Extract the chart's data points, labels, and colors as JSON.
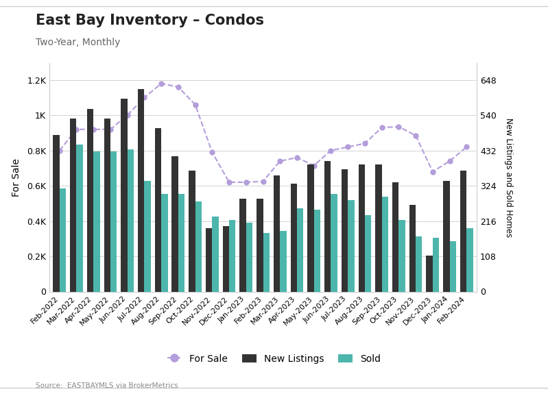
{
  "title": "East Bay Inventory – Condos",
  "subtitle": "Two-Year, Monthly",
  "source": "Source:  EASTBAYMLS via BrokerMetrics",
  "labels": [
    "Feb-2022",
    "Mar-2022",
    "Apr-2022",
    "May-2022",
    "Jun-2022",
    "Jul-2022",
    "Aug-2022",
    "Sep-2022",
    "Oct-2022",
    "Nov-2022",
    "Dec-2022",
    "Jan-2023",
    "Feb-2023",
    "Mar-2023",
    "Apr-2023",
    "May-2023",
    "Jun-2023",
    "Jul-2023",
    "Aug-2023",
    "Sep-2023",
    "Oct-2023",
    "Nov-2023",
    "Dec-2023",
    "Jan-2024",
    "Feb-2024"
  ],
  "for_sale": [
    800,
    920,
    920,
    920,
    1000,
    1100,
    1180,
    1160,
    1060,
    790,
    620,
    620,
    625,
    740,
    760,
    715,
    800,
    820,
    840,
    930,
    935,
    885,
    680,
    740,
    820
  ],
  "new_listings": [
    480,
    530,
    560,
    530,
    590,
    620,
    500,
    415,
    370,
    195,
    200,
    285,
    285,
    355,
    330,
    390,
    400,
    375,
    390,
    390,
    335,
    265,
    110,
    340,
    370
  ],
  "sold": [
    315,
    450,
    430,
    430,
    435,
    340,
    300,
    300,
    275,
    230,
    220,
    210,
    180,
    185,
    255,
    250,
    300,
    280,
    235,
    290,
    220,
    170,
    165,
    155,
    195
  ],
  "for_sale_color": "#b39ddb",
  "new_listings_color": "#333333",
  "sold_color": "#4db6ac",
  "background_color": "#ffffff",
  "left_ylim": [
    0,
    1296
  ],
  "right_ylim": [
    0,
    700
  ],
  "left_yticks": [
    0,
    200,
    400,
    600,
    800,
    1000,
    1200
  ],
  "left_yticklabels": [
    "0",
    "0.2K",
    "0.4K",
    "0.6K",
    "0.8K",
    "1K",
    "1.2K"
  ],
  "right_yticks": [
    0,
    108,
    216,
    324,
    432,
    540,
    648
  ],
  "right_yticklabels": [
    "0",
    "108",
    "216",
    "324",
    "432",
    "540",
    "648"
  ],
  "ylabel_left": "For Sale",
  "ylabel_right": "New Listings and Sold Homes",
  "legend_labels": [
    "For Sale",
    "New Listings",
    "Sold"
  ]
}
